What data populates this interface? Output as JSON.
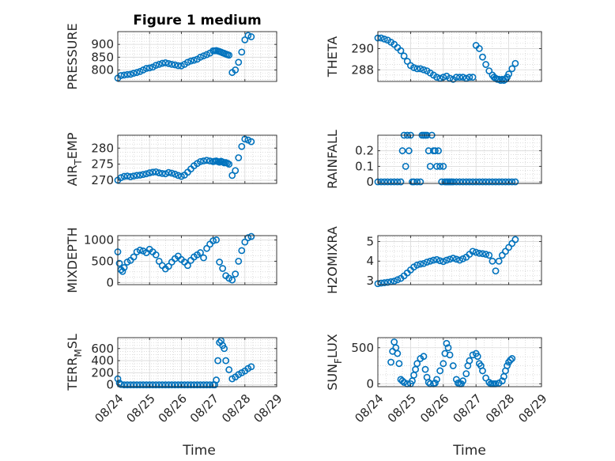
{
  "chart_data": [
    {
      "type": "scatter",
      "title": "Figure 1 medium",
      "ylabel": "PRESSURE",
      "ylim": [
        755,
        950
      ],
      "yticks": [
        800,
        850,
        900
      ],
      "xlim": [
        0,
        5
      ],
      "grid": true,
      "color": "#0072BD",
      "x": [
        0,
        0.1,
        0.2,
        0.3,
        0.4,
        0.5,
        0.6,
        0.7,
        0.8,
        0.9,
        1.0,
        1.1,
        1.2,
        1.3,
        1.4,
        1.5,
        1.6,
        1.7,
        1.8,
        1.9,
        2.0,
        2.1,
        2.2,
        2.3,
        2.4,
        2.5,
        2.6,
        2.7,
        2.8,
        2.9,
        3.0,
        3.05,
        3.1,
        3.15,
        3.2,
        3.25,
        3.3,
        3.35,
        3.4,
        3.45,
        3.5,
        3.6,
        3.7,
        3.8,
        3.9,
        4.0,
        4.1,
        4.2
      ],
      "y": [
        768,
        778,
        780,
        782,
        783,
        787,
        790,
        794,
        800,
        806,
        808,
        811,
        818,
        822,
        826,
        828,
        825,
        822,
        820,
        817,
        816,
        822,
        830,
        835,
        838,
        842,
        850,
        855,
        860,
        866,
        875,
        875,
        876,
        874,
        872,
        870,
        867,
        865,
        862,
        860,
        858,
        790,
        800,
        830,
        870,
        918,
        935,
        930
      ]
    },
    {
      "type": "scatter",
      "ylabel": "THETA",
      "ylim": [
        286.9,
        291.6
      ],
      "yticks": [
        288,
        290
      ],
      "xlim": [
        0,
        5
      ],
      "grid": true,
      "color": "#0072BD",
      "x": [
        0,
        0.1,
        0.2,
        0.3,
        0.4,
        0.5,
        0.6,
        0.7,
        0.8,
        0.9,
        1.0,
        1.1,
        1.2,
        1.3,
        1.4,
        1.5,
        1.6,
        1.7,
        1.8,
        1.9,
        2.0,
        2.1,
        2.2,
        2.3,
        2.4,
        2.5,
        2.6,
        2.7,
        2.8,
        2.9,
        3.0,
        3.1,
        3.2,
        3.3,
        3.4,
        3.5,
        3.55,
        3.6,
        3.65,
        3.7,
        3.75,
        3.8,
        3.85,
        3.9,
        3.95,
        4.0,
        4.1,
        4.2
      ],
      "y": [
        291.0,
        291.0,
        290.9,
        290.8,
        290.6,
        290.4,
        290.1,
        289.8,
        289.3,
        288.8,
        288.4,
        288.2,
        288.1,
        288.1,
        288.0,
        287.9,
        287.7,
        287.5,
        287.3,
        287.2,
        287.3,
        287.4,
        287.2,
        287.1,
        287.3,
        287.3,
        287.3,
        287.2,
        287.3,
        287.3,
        290.3,
        290.0,
        289.2,
        288.5,
        287.9,
        287.5,
        287.3,
        287.2,
        287.1,
        287.1,
        287.0,
        287.1,
        287.0,
        287.1,
        287.3,
        287.6,
        288.1,
        288.6
      ]
    },
    {
      "type": "scatter",
      "ylabel": "AIR_TEMP",
      "ylim": [
        269,
        284
      ],
      "yticks": [
        270,
        275,
        280
      ],
      "xlim": [
        0,
        5
      ],
      "grid": true,
      "color": "#0072BD",
      "x": [
        0,
        0.1,
        0.2,
        0.3,
        0.4,
        0.5,
        0.6,
        0.7,
        0.8,
        0.9,
        1.0,
        1.1,
        1.2,
        1.3,
        1.4,
        1.5,
        1.6,
        1.7,
        1.8,
        1.9,
        2.0,
        2.1,
        2.2,
        2.3,
        2.4,
        2.5,
        2.6,
        2.7,
        2.8,
        2.9,
        3.0,
        3.05,
        3.1,
        3.15,
        3.2,
        3.25,
        3.3,
        3.35,
        3.4,
        3.45,
        3.5,
        3.6,
        3.7,
        3.8,
        3.9,
        4.0,
        4.1,
        4.2
      ],
      "y": [
        270.0,
        270.8,
        271.2,
        271.3,
        271.1,
        271.3,
        271.5,
        271.6,
        271.8,
        272.0,
        272.3,
        272.5,
        272.6,
        272.3,
        272.1,
        272.0,
        272.4,
        272.2,
        271.9,
        271.5,
        271.2,
        271.6,
        272.5,
        273.5,
        274.5,
        275.2,
        275.8,
        276.0,
        276.2,
        276.0,
        275.8,
        275.9,
        276.0,
        275.8,
        275.6,
        275.9,
        275.7,
        275.4,
        275.5,
        275.3,
        275.0,
        271.5,
        273.0,
        277.0,
        280.5,
        282.8,
        282.5,
        282.0
      ]
    },
    {
      "type": "scatter",
      "ylabel": "RAINFALL",
      "ylim": [
        -0.01,
        0.3
      ],
      "yticks": [
        0,
        0.1,
        0.2
      ],
      "xlim": [
        0,
        5
      ],
      "grid": true,
      "color": "#0072BD",
      "x": [
        0,
        0.1,
        0.2,
        0.3,
        0.4,
        0.5,
        0.6,
        0.7,
        0.75,
        0.8,
        0.85,
        0.9,
        0.95,
        1.0,
        1.05,
        1.1,
        1.2,
        1.3,
        1.35,
        1.4,
        1.45,
        1.5,
        1.55,
        1.6,
        1.65,
        1.7,
        1.75,
        1.8,
        1.85,
        1.9,
        1.95,
        2.0,
        2.05,
        2.1,
        2.15,
        2.2,
        2.25,
        2.3,
        2.4,
        2.5,
        2.6,
        2.7,
        2.8,
        2.9,
        3.0,
        3.1,
        3.2,
        3.3,
        3.4,
        3.5,
        3.6,
        3.7,
        3.8,
        3.9,
        4.0,
        4.1,
        4.2
      ],
      "y": [
        0,
        0,
        0,
        0,
        0,
        0,
        0,
        0,
        0.2,
        0.3,
        0.1,
        0.3,
        0.2,
        0.3,
        0,
        0,
        0,
        0,
        0.3,
        0.3,
        0.3,
        0.3,
        0.2,
        0.1,
        0.3,
        0.2,
        0.2,
        0.1,
        0.2,
        0.1,
        0,
        0.1,
        0,
        0,
        0,
        0,
        0,
        0,
        0,
        0,
        0,
        0,
        0,
        0,
        0,
        0,
        0,
        0,
        0,
        0,
        0,
        0,
        0,
        0,
        0,
        0,
        0
      ]
    },
    {
      "type": "scatter",
      "ylabel": "MIXDEPTH",
      "ylim": [
        -50,
        1100
      ],
      "yticks": [
        0,
        500,
        1000
      ],
      "xlim": [
        0,
        5
      ],
      "grid": true,
      "color": "#0072BD",
      "x": [
        0,
        0.05,
        0.1,
        0.15,
        0.2,
        0.3,
        0.4,
        0.5,
        0.6,
        0.7,
        0.8,
        0.9,
        1.0,
        1.1,
        1.2,
        1.3,
        1.4,
        1.5,
        1.6,
        1.7,
        1.8,
        1.9,
        2.0,
        2.1,
        2.2,
        2.3,
        2.4,
        2.5,
        2.6,
        2.7,
        2.8,
        2.9,
        3.0,
        3.1,
        3.2,
        3.3,
        3.4,
        3.5,
        3.6,
        3.7,
        3.8,
        3.9,
        4.0,
        4.1,
        4.2
      ],
      "y": [
        720,
        450,
        300,
        260,
        350,
        480,
        520,
        600,
        720,
        760,
        740,
        700,
        780,
        720,
        650,
        500,
        400,
        320,
        380,
        480,
        560,
        620,
        540,
        480,
        400,
        520,
        600,
        650,
        700,
        580,
        800,
        900,
        980,
        1000,
        480,
        330,
        160,
        100,
        60,
        200,
        500,
        750,
        950,
        1050,
        1080
      ]
    },
    {
      "type": "scatter",
      "ylabel": "H2OMIXRA",
      "ylim": [
        2.8,
        5.3
      ],
      "yticks": [
        3,
        4,
        5
      ],
      "xlim": [
        0,
        5
      ],
      "grid": true,
      "color": "#0072BD",
      "x": [
        0,
        0.1,
        0.2,
        0.3,
        0.4,
        0.5,
        0.6,
        0.7,
        0.8,
        0.9,
        1.0,
        1.1,
        1.2,
        1.3,
        1.4,
        1.5,
        1.6,
        1.7,
        1.8,
        1.9,
        2.0,
        2.1,
        2.2,
        2.3,
        2.4,
        2.5,
        2.6,
        2.7,
        2.8,
        2.9,
        3.0,
        3.1,
        3.2,
        3.3,
        3.4,
        3.5,
        3.6,
        3.7,
        3.8,
        3.9,
        4.0,
        4.1,
        4.2
      ],
      "y": [
        2.85,
        2.88,
        2.9,
        2.92,
        2.95,
        2.98,
        3.05,
        3.12,
        3.25,
        3.4,
        3.55,
        3.7,
        3.8,
        3.85,
        3.88,
        3.95,
        4.0,
        4.05,
        4.08,
        4.02,
        3.98,
        4.05,
        4.1,
        4.15,
        4.1,
        4.05,
        4.12,
        4.2,
        4.35,
        4.5,
        4.45,
        4.4,
        4.38,
        4.35,
        4.3,
        4.0,
        3.5,
        4.0,
        4.3,
        4.5,
        4.7,
        4.9,
        5.1
      ]
    },
    {
      "type": "scatter",
      "ylabel": "TERR_MSL",
      "ylim": [
        -30,
        780
      ],
      "yticks": [
        0,
        200,
        400,
        600
      ],
      "xlim": [
        0,
        5
      ],
      "grid": true,
      "color": "#0072BD",
      "x": [
        0,
        0.05,
        0.1,
        0.2,
        0.3,
        0.4,
        0.5,
        0.6,
        0.7,
        0.8,
        0.9,
        1.0,
        1.1,
        1.2,
        1.3,
        1.4,
        1.5,
        1.6,
        1.7,
        1.8,
        1.9,
        2.0,
        2.1,
        2.2,
        2.3,
        2.4,
        2.5,
        2.6,
        2.7,
        2.8,
        2.9,
        3.0,
        3.05,
        3.1,
        3.15,
        3.2,
        3.25,
        3.3,
        3.35,
        3.4,
        3.5,
        3.6,
        3.7,
        3.8,
        3.9,
        4.0,
        4.1,
        4.2
      ],
      "y": [
        100,
        30,
        5,
        0,
        0,
        0,
        0,
        0,
        0,
        0,
        0,
        0,
        0,
        0,
        0,
        0,
        0,
        0,
        0,
        0,
        0,
        0,
        0,
        0,
        0,
        0,
        0,
        0,
        0,
        0,
        0,
        0,
        0,
        80,
        400,
        700,
        730,
        650,
        600,
        400,
        250,
        100,
        130,
        170,
        200,
        230,
        270,
        300
      ]
    },
    {
      "type": "scatter",
      "ylabel": "SUN_FLUX",
      "ylim": [
        -40,
        640
      ],
      "yticks": [
        0,
        500
      ],
      "xlim": [
        0,
        5
      ],
      "grid": true,
      "color": "#0072BD",
      "x": [
        0.4,
        0.45,
        0.5,
        0.55,
        0.6,
        0.65,
        0.7,
        0.75,
        0.8,
        0.9,
        1.0,
        1.05,
        1.1,
        1.15,
        1.2,
        1.3,
        1.4,
        1.45,
        1.5,
        1.55,
        1.6,
        1.7,
        1.75,
        1.8,
        1.9,
        2.0,
        2.05,
        2.1,
        2.15,
        2.2,
        2.3,
        2.4,
        2.45,
        2.5,
        2.55,
        2.6,
        2.7,
        2.75,
        2.8,
        2.9,
        3.0,
        3.05,
        3.1,
        3.15,
        3.2,
        3.3,
        3.4,
        3.45,
        3.5,
        3.55,
        3.6,
        3.7,
        3.8,
        3.85,
        3.9,
        3.95,
        4.0,
        4.05,
        4.1
      ],
      "y": [
        300,
        450,
        580,
        500,
        420,
        280,
        60,
        40,
        20,
        0,
        0,
        40,
        120,
        200,
        280,
        350,
        380,
        200,
        90,
        20,
        0,
        0,
        10,
        60,
        180,
        280,
        420,
        560,
        500,
        400,
        250,
        60,
        10,
        0,
        0,
        40,
        140,
        250,
        320,
        400,
        420,
        380,
        280,
        250,
        180,
        80,
        20,
        0,
        0,
        0,
        0,
        10,
        40,
        100,
        180,
        250,
        300,
        330,
        350
      ]
    }
  ],
  "shared_x": {
    "label": "Time",
    "ticks": [
      0,
      1,
      2,
      3,
      4,
      5
    ],
    "tick_labels": [
      "08/24",
      "08/25",
      "08/26",
      "08/27",
      "08/28",
      "08/29"
    ]
  },
  "axis_label_parts": {
    "AIR_TEMP": [
      "AIR",
      "T",
      "EMP"
    ],
    "TERR_MSL": [
      "TERR",
      "M",
      "SL"
    ],
    "SUN_FLUX": [
      "SUN",
      "F",
      "LUX"
    ]
  }
}
